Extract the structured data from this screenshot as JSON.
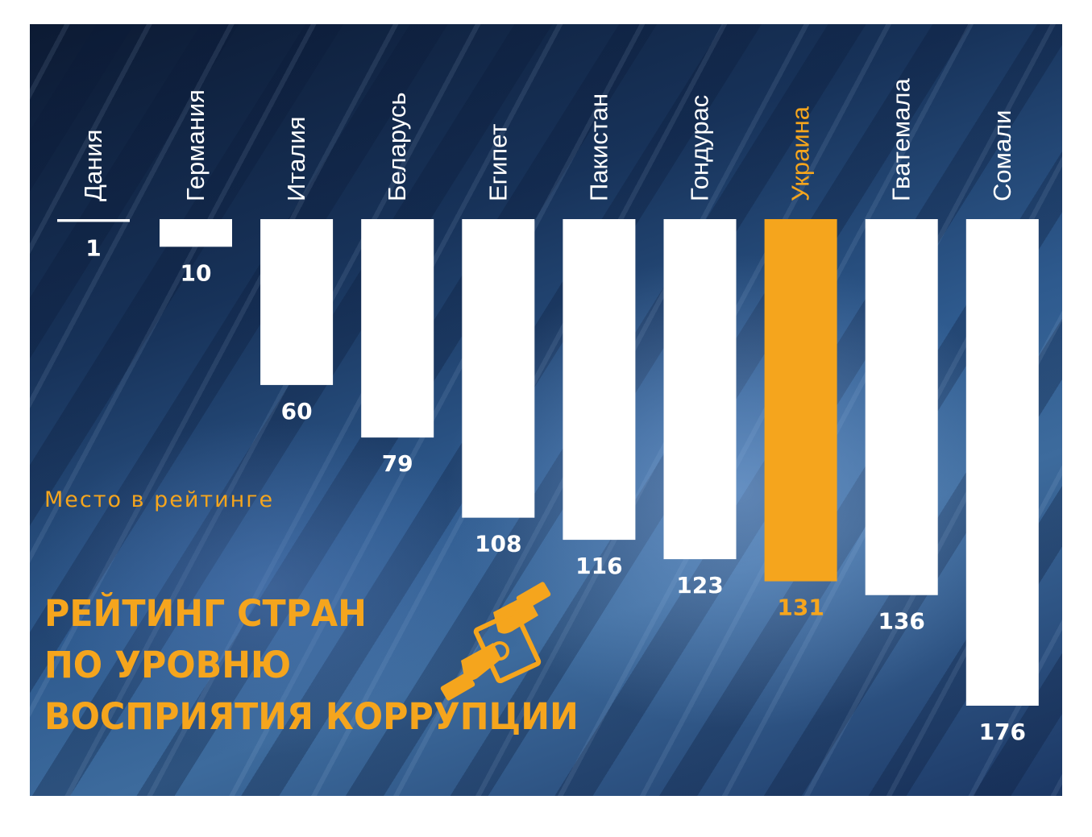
{
  "chart_data": {
    "type": "bar",
    "orientation": "vertical-downward",
    "categories": [
      "Дания",
      "Германия",
      "Италия",
      "Беларусь",
      "Египет",
      "Пакистан",
      "Гондурас",
      "Украина",
      "Гватемала",
      "Сомали"
    ],
    "values": [
      1,
      10,
      60,
      79,
      108,
      116,
      123,
      131,
      136,
      176
    ],
    "value_labels": [
      "1",
      "10",
      "60",
      "79",
      "108",
      "116",
      "123",
      "131",
      "136",
      "176"
    ],
    "highlight": "Украина",
    "ylim": [
      0,
      176
    ],
    "axis_label": "Место в рейтинге",
    "grid": false,
    "legend": "none",
    "colors": {
      "bar": "#ffffff",
      "highlight": "#f5a51d",
      "label": "#ffffff",
      "highlight_label": "#f5a51d"
    }
  },
  "caption": "Место в рейтинге",
  "title_lines": [
    "РЕЙТИНГ СТРАН",
    "ПО УРОВНЮ",
    "ВОСПРИЯТИЯ КОРРУПЦИИ"
  ],
  "icon": "handshake-bribe-icon"
}
